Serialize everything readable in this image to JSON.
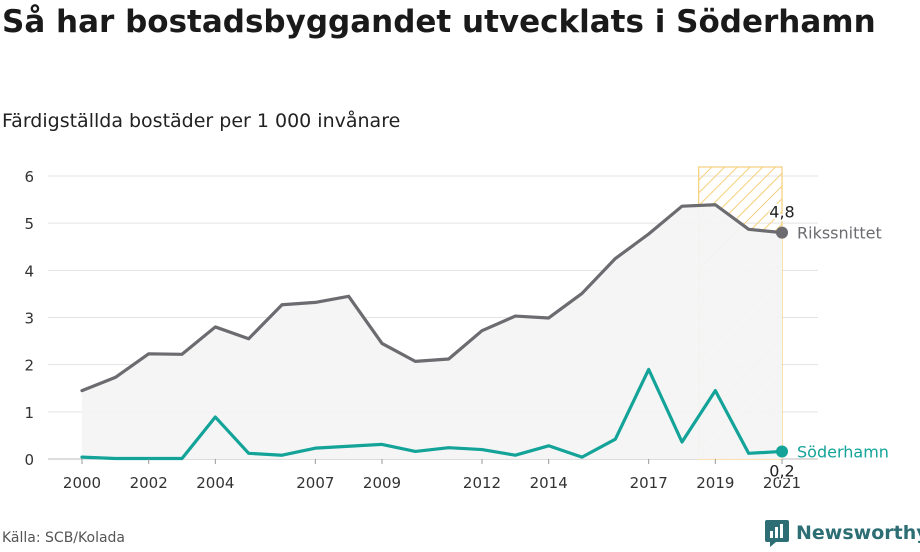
{
  "chart_data": {
    "type": "line",
    "title": "Så har bostadsbyggandet utvecklats i Söderhamn",
    "subtitle": "Färdigställda bostäder per 1 000 invånare",
    "x": [
      2000,
      2001,
      2002,
      2003,
      2004,
      2005,
      2006,
      2007,
      2008,
      2009,
      2010,
      2011,
      2012,
      2013,
      2014,
      2015,
      2016,
      2017,
      2018,
      2019,
      2020,
      2021
    ],
    "x_tick_labels": [
      "2000",
      "2002",
      "2004",
      "2007",
      "2009",
      "2012",
      "2014",
      "2017",
      "2019",
      "2021"
    ],
    "x_tick_values": [
      2000,
      2002,
      2004,
      2007,
      2009,
      2012,
      2014,
      2017,
      2019,
      2021
    ],
    "y_tick_labels": [
      "0",
      "1",
      "2",
      "3",
      "4",
      "5",
      "6"
    ],
    "ylim": [
      0,
      6
    ],
    "grid": true,
    "highlight_range": [
      2018.5,
      2021
    ],
    "series": [
      {
        "name": "Rikssnittet",
        "color": "#6b6b70",
        "values": [
          1.45,
          1.73,
          2.23,
          2.22,
          2.8,
          2.55,
          3.27,
          3.32,
          3.45,
          2.45,
          2.07,
          2.12,
          2.72,
          3.03,
          2.99,
          3.51,
          4.25,
          4.77,
          5.36,
          5.39,
          4.87,
          4.8
        ],
        "end_label": "4,8"
      },
      {
        "name": "Söderhamn",
        "color": "#13a398",
        "values": [
          0.04,
          0.01,
          0.01,
          0.01,
          0.89,
          0.12,
          0.08,
          0.23,
          0.27,
          0.31,
          0.16,
          0.24,
          0.2,
          0.08,
          0.28,
          0.04,
          0.42,
          1.9,
          0.36,
          1.45,
          0.12,
          0.16
        ],
        "end_label": "0,2"
      }
    ]
  },
  "footer": {
    "source": "Källa: SCB/Kolada",
    "brand": "Newsworthy"
  }
}
